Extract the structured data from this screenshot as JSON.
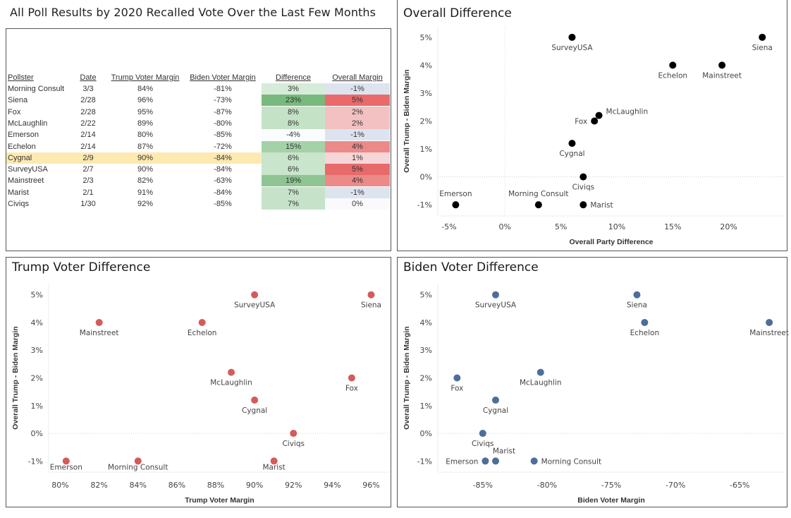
{
  "page_title": "All Poll Results by 2020 Recalled Vote Over the Last Few Months",
  "table": {
    "headers": [
      "Pollster",
      "Date",
      "Trump Voter Margin",
      "Biden Voter Margin",
      "Difference",
      "Overall Margin"
    ],
    "highlight_row": "Cygnal",
    "highlight_color": "#fdeab0",
    "rows": [
      {
        "pollster": "Morning Consult",
        "date": "3/3",
        "trump": "84%",
        "biden": "-81%",
        "difference": "3%",
        "overall": "-1%",
        "diff_color": "#d6ebd8",
        "overall_color": "#dde4f0"
      },
      {
        "pollster": "Siena",
        "date": "2/28",
        "trump": "96%",
        "biden": "-73%",
        "difference": "23%",
        "overall": "5%",
        "diff_color": "#78b97d",
        "overall_color": "#e86a6a"
      },
      {
        "pollster": "Fox",
        "date": "2/28",
        "trump": "95%",
        "biden": "-87%",
        "difference": "8%",
        "overall": "2%",
        "diff_color": "#c3e2c6",
        "overall_color": "#f3c1c1"
      },
      {
        "pollster": "McLaughlin",
        "date": "2/22",
        "trump": "89%",
        "biden": "-80%",
        "difference": "8%",
        "overall": "2%",
        "diff_color": "#c3e2c6",
        "overall_color": "#f3c1c1"
      },
      {
        "pollster": "Emerson",
        "date": "2/14",
        "trump": "80%",
        "biden": "-85%",
        "difference": "-4%",
        "overall": "-1%",
        "diff_color": "#fbfcfd",
        "overall_color": "#dde4f0"
      },
      {
        "pollster": "Echelon",
        "date": "2/14",
        "trump": "87%",
        "biden": "-72%",
        "difference": "15%",
        "overall": "4%",
        "diff_color": "#a4d1a8",
        "overall_color": "#ec8a8a"
      },
      {
        "pollster": "Cygnal",
        "date": "2/9",
        "trump": "90%",
        "biden": "-84%",
        "difference": "6%",
        "overall": "1%",
        "diff_color": "#c9e5cc",
        "overall_color": "#f7d6d8"
      },
      {
        "pollster": "SurveyUSA",
        "date": "2/7",
        "trump": "90%",
        "biden": "-84%",
        "difference": "6%",
        "overall": "5%",
        "diff_color": "#c9e5cc",
        "overall_color": "#e86a6a"
      },
      {
        "pollster": "Mainstreet",
        "date": "2/3",
        "trump": "82%",
        "biden": "-63%",
        "difference": "19%",
        "overall": "4%",
        "diff_color": "#8ec592",
        "overall_color": "#ec8a8a"
      },
      {
        "pollster": "Marist",
        "date": "2/1",
        "trump": "91%",
        "biden": "-84%",
        "difference": "7%",
        "overall": "-1%",
        "diff_color": "#c6e3c9",
        "overall_color": "#dde4f0"
      },
      {
        "pollster": "Civiqs",
        "date": "1/30",
        "trump": "92%",
        "biden": "-85%",
        "difference": "7%",
        "overall": "0%",
        "diff_color": "#c6e3c9",
        "overall_color": "#fafafc"
      }
    ]
  },
  "chart_data": [
    {
      "id": "overall",
      "type": "scatter",
      "title": "Overall Difference",
      "xlabel": "Overall Party Difference",
      "ylabel": "Overall Trump - Biden Margin",
      "color": "#000000",
      "xlim": [
        -6,
        25
      ],
      "ylim": [
        -1.4,
        5.4
      ],
      "xticks": [
        -5,
        0,
        5,
        10,
        15,
        20
      ],
      "xtick_labels": [
        "-5%",
        "0%",
        "5%",
        "10%",
        "15%",
        "20%"
      ],
      "yticks": [
        5,
        4,
        3,
        2,
        1,
        0,
        -1
      ],
      "ytick_labels": [
        "5%",
        "4%",
        "3%",
        "2%",
        "1%",
        "0%",
        "-1%"
      ],
      "zero_lines": {
        "x": true,
        "y": true
      },
      "points": [
        {
          "name": "SurveyUSA",
          "x": 6,
          "y": 5,
          "label_pos": "below"
        },
        {
          "name": "Siena",
          "x": 23,
          "y": 5,
          "label_pos": "below"
        },
        {
          "name": "Echelon",
          "x": 15,
          "y": 4,
          "label_pos": "below"
        },
        {
          "name": "Mainstreet",
          "x": 19.4,
          "y": 4,
          "label_pos": "below"
        },
        {
          "name": "McLaughlin",
          "x": 8.4,
          "y": 2.2,
          "label_pos": "right"
        },
        {
          "name": "Fox",
          "x": 8,
          "y": 2,
          "label_pos": "left"
        },
        {
          "name": "Cygnal",
          "x": 6,
          "y": 1.2,
          "label_pos": "below"
        },
        {
          "name": "Civiqs",
          "x": 7,
          "y": 0,
          "label_pos": "below"
        },
        {
          "name": "Emerson",
          "x": -4.4,
          "y": -1,
          "label_pos": "above"
        },
        {
          "name": "Morning Consult",
          "x": 3,
          "y": -1,
          "label_pos": "above"
        },
        {
          "name": "Marist",
          "x": 7,
          "y": -1,
          "label_pos": "right"
        }
      ]
    },
    {
      "id": "trump",
      "type": "scatter",
      "title": "Trump Voter Difference",
      "xlabel": "Trump Voter Margin",
      "ylabel": "Overall Trump - Biden Margin",
      "color": "#d45b5b",
      "xlim": [
        79.4,
        97
      ],
      "ylim": [
        -1.4,
        5.4
      ],
      "xticks": [
        80,
        82,
        84,
        86,
        88,
        90,
        92,
        94,
        96
      ],
      "xtick_labels": [
        "80%",
        "82%",
        "84%",
        "86%",
        "88%",
        "90%",
        "92%",
        "94%",
        "96%"
      ],
      "yticks": [
        5,
        4,
        3,
        2,
        1,
        0,
        -1
      ],
      "ytick_labels": [
        "5%",
        "4%",
        "3%",
        "2%",
        "1%",
        "0%",
        "-1%"
      ],
      "zero_lines": {
        "x": false,
        "y": true
      },
      "points": [
        {
          "name": "SurveyUSA",
          "x": 90,
          "y": 5,
          "label_pos": "below"
        },
        {
          "name": "Siena",
          "x": 96,
          "y": 5,
          "label_pos": "below"
        },
        {
          "name": "Mainstreet",
          "x": 82,
          "y": 4,
          "label_pos": "below"
        },
        {
          "name": "Echelon",
          "x": 87.3,
          "y": 4,
          "label_pos": "below"
        },
        {
          "name": "McLaughlin",
          "x": 88.8,
          "y": 2.2,
          "label_pos": "below"
        },
        {
          "name": "Fox",
          "x": 95,
          "y": 2,
          "label_pos": "below"
        },
        {
          "name": "Cygnal",
          "x": 90,
          "y": 1.2,
          "label_pos": "below"
        },
        {
          "name": "Civiqs",
          "x": 92,
          "y": 0,
          "label_pos": "below"
        },
        {
          "name": "Emerson",
          "x": 80.3,
          "y": -1,
          "label_pos": "below-tight"
        },
        {
          "name": "Morning Consult",
          "x": 84,
          "y": -1,
          "label_pos": "below-tight"
        },
        {
          "name": "Marist",
          "x": 91,
          "y": -1,
          "label_pos": "below-tight"
        }
      ]
    },
    {
      "id": "biden",
      "type": "scatter",
      "title": "Biden Voter Difference",
      "xlabel": "Biden Voter Margin",
      "ylabel": "Overall Trump - Biden Margin",
      "color": "#4e6e9a",
      "xlim": [
        -88.5,
        -61.5
      ],
      "ylim": [
        -1.4,
        5.4
      ],
      "xticks": [
        -85,
        -80,
        -75,
        -70,
        -65
      ],
      "xtick_labels": [
        "-85%",
        "-80%",
        "-75%",
        "-70%",
        "-65%"
      ],
      "yticks": [
        5,
        4,
        3,
        2,
        1,
        0,
        -1
      ],
      "ytick_labels": [
        "5%",
        "4%",
        "3%",
        "2%",
        "1%",
        "0%",
        "-1%"
      ],
      "zero_lines": {
        "x": false,
        "y": true
      },
      "points": [
        {
          "name": "SurveyUSA",
          "x": -84,
          "y": 5,
          "label_pos": "below"
        },
        {
          "name": "Siena",
          "x": -73,
          "y": 5,
          "label_pos": "below"
        },
        {
          "name": "Echelon",
          "x": -72.4,
          "y": 4,
          "label_pos": "below"
        },
        {
          "name": "Mainstreet",
          "x": -62.7,
          "y": 4,
          "label_pos": "below"
        },
        {
          "name": "McLaughlin",
          "x": -80.5,
          "y": 2.2,
          "label_pos": "below"
        },
        {
          "name": "Fox",
          "x": -87,
          "y": 2,
          "label_pos": "below"
        },
        {
          "name": "Cygnal",
          "x": -84,
          "y": 1.2,
          "label_pos": "below"
        },
        {
          "name": "Civiqs",
          "x": -85,
          "y": 0,
          "label_pos": "below"
        },
        {
          "name": "Emerson",
          "x": -84.8,
          "y": -1,
          "label_pos": "left"
        },
        {
          "name": "Marist",
          "x": -84,
          "y": -1,
          "label_pos": "above-right"
        },
        {
          "name": "Morning Consult",
          "x": -81,
          "y": -1,
          "label_pos": "right"
        }
      ]
    }
  ]
}
